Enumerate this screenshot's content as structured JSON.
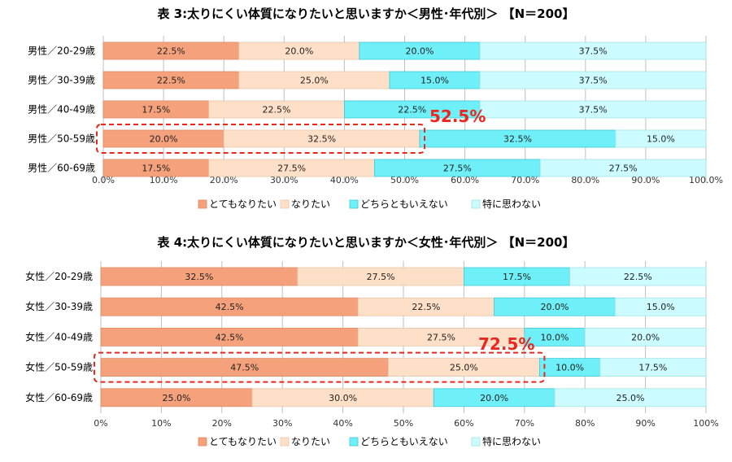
{
  "colors": {
    "s1": "#f5a27c",
    "s2": "#fde0c7",
    "s3": "#6ff0f8",
    "s4": "#ccfcff",
    "grid": "#bfbfbf",
    "highlight": "#e8281e"
  },
  "chart_data": [
    {
      "type": "bar",
      "orientation": "horizontal",
      "stacked": true,
      "title": "表 3:太りにくい体質になりたいと思いますか＜男性･年代別＞ 【N＝200】",
      "categories": [
        "男性／20-29歳",
        "男性／30-39歳",
        "男性／40-49歳",
        "男性／50-59歳",
        "男性／60-69歳"
      ],
      "series": [
        {
          "name": "とてもなりたい",
          "values": [
            22.5,
            22.5,
            17.5,
            20.0,
            17.5
          ],
          "labels": [
            "22.5%",
            "22.5%",
            "17.5%",
            "20.0%",
            "17.5%"
          ]
        },
        {
          "name": "なりたい",
          "values": [
            20.0,
            25.0,
            22.5,
            32.5,
            27.5
          ],
          "labels": [
            "20.0%",
            "25.0%",
            "22.5%",
            "32.5%",
            "27.5%"
          ]
        },
        {
          "name": "どちらともいえない",
          "values": [
            20.0,
            15.0,
            22.5,
            32.5,
            27.5
          ],
          "labels": [
            "20.0%",
            "15.0%",
            "22.5%",
            "32.5%",
            "27.5%"
          ]
        },
        {
          "name": "特に思わない",
          "values": [
            37.5,
            37.5,
            37.5,
            15.0,
            27.5
          ],
          "labels": [
            "37.5%",
            "37.5%",
            "37.5%",
            "15.0%",
            "27.5%"
          ]
        }
      ],
      "xlim": [
        0,
        100
      ],
      "xticks": [
        "0.0%",
        "10.0%",
        "20.0%",
        "30.0%",
        "40.0%",
        "50.0%",
        "60.0%",
        "70.0%",
        "80.0%",
        "90.0%",
        "100.0%"
      ],
      "grid": true,
      "legend_position": "bottom",
      "annotation": {
        "text": "52.5%",
        "row": 3,
        "value": 52.5,
        "segments": 2
      }
    },
    {
      "type": "bar",
      "orientation": "horizontal",
      "stacked": true,
      "title": "表 4:太りにくい体質になりたいと思いますか＜女性･年代別＞ 【N＝200】",
      "categories": [
        "女性／20-29歳",
        "女性／30-39歳",
        "女性／40-49歳",
        "女性／50-59歳",
        "女性／60-69歳"
      ],
      "series": [
        {
          "name": "とてもなりたい",
          "values": [
            32.5,
            42.5,
            42.5,
            47.5,
            25.0
          ],
          "labels": [
            "32.5%",
            "42.5%",
            "42.5%",
            "47.5%",
            "25.0%"
          ]
        },
        {
          "name": "なりたい",
          "values": [
            27.5,
            22.5,
            27.5,
            25.0,
            30.0
          ],
          "labels": [
            "27.5%",
            "22.5%",
            "27.5%",
            "25.0%",
            "30.0%"
          ]
        },
        {
          "name": "どちらともいえない",
          "values": [
            17.5,
            20.0,
            10.0,
            10.0,
            20.0
          ],
          "labels": [
            "17.5%",
            "20.0%",
            "10.0%",
            "10.0%",
            "20.0%"
          ]
        },
        {
          "name": "特に思わない",
          "values": [
            22.5,
            15.0,
            20.0,
            17.5,
            25.0
          ],
          "labels": [
            "22.5%",
            "15.0%",
            "20.0%",
            "17.5%",
            "25.0%"
          ]
        }
      ],
      "xlim": [
        0,
        100
      ],
      "xticks": [
        "0%",
        "10%",
        "20%",
        "30%",
        "40%",
        "50%",
        "60%",
        "70%",
        "80%",
        "90%",
        "100%"
      ],
      "grid": true,
      "legend_position": "bottom",
      "annotation": {
        "text": "72.5%",
        "row": 3,
        "value": 72.5,
        "segments": 2
      }
    }
  ]
}
